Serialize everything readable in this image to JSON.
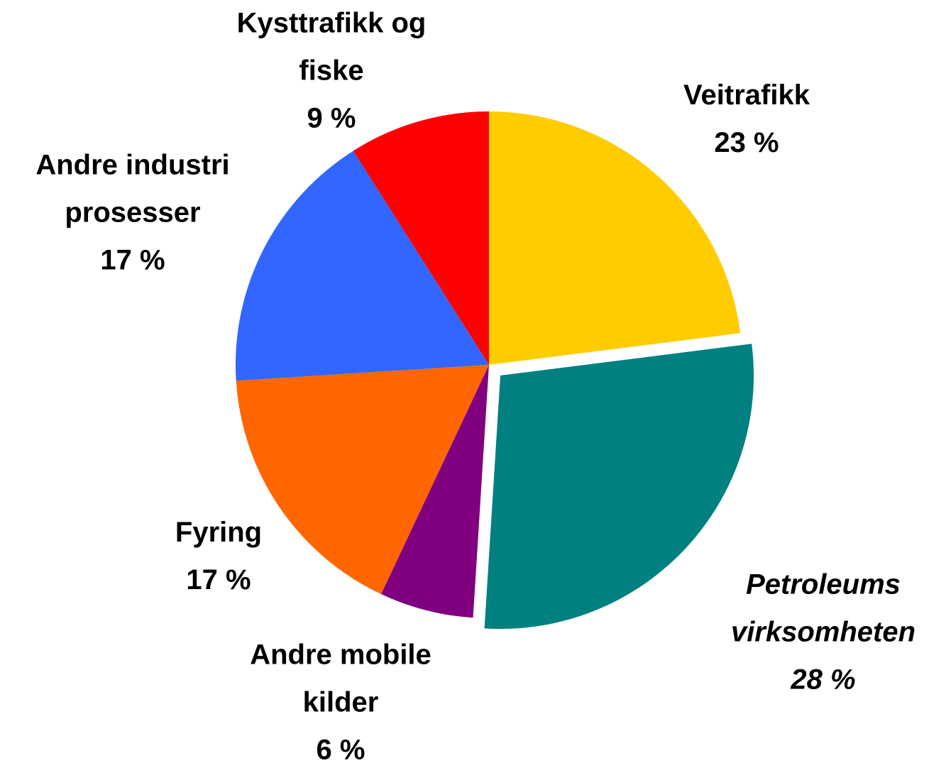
{
  "chart_data": {
    "type": "pie",
    "categories": [
      "Veitrafikk",
      "Petroleums\nvirksomheten",
      "Andre mobile\nkilder",
      "Fyring",
      "Andre industri\nprosesser",
      "Kysttrafikk og\nfiske"
    ],
    "values": [
      23,
      28,
      6,
      17,
      17,
      9
    ],
    "value_labels": [
      "23 %",
      "28 %",
      "6 %",
      "17 %",
      "17 %",
      "9 %"
    ],
    "colors": [
      "#FFCC00",
      "#008080",
      "#800080",
      "#FF6600",
      "#3366FF",
      "#FF0000"
    ]
  }
}
